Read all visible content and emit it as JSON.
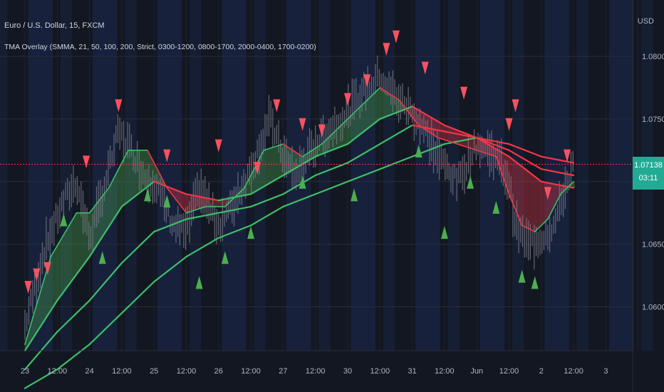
{
  "header": {
    "symbol_title": "Euro / U.S. Dollar, 15, FXCM",
    "indicator_title": "TMA Overlay (SMMA, 21, 50, 100, 200, Strict, 0300-1200, 0800-1700, 2000-0400, 1700-0200)",
    "currency": "USD"
  },
  "last_price": {
    "value": "1.07138",
    "countdown": "03:11",
    "color": "#22ab94"
  },
  "colors": {
    "background": "#131722",
    "session_band": "#1b2a52",
    "bull": "#4caf50",
    "bear": "#f23645",
    "candle": "#787b86"
  },
  "chart_data": {
    "type": "line",
    "title": "",
    "ylabel": "",
    "xlabel": "",
    "ylim": [
      1.0565,
      1.0845
    ],
    "y_ticks": [
      "1.06000",
      "1.06500",
      "1.07000",
      "1.07500",
      "1.08000"
    ],
    "y_tick_values": [
      1.06,
      1.065,
      1.07,
      1.075,
      1.08
    ],
    "x_tick_labels": [
      "23",
      "12:00",
      "24",
      "12:00",
      "25",
      "12:00",
      "26",
      "12:00",
      "27",
      "12:00",
      "30",
      "12:00",
      "31",
      "12:00",
      "Jun",
      "12:00",
      "2",
      "12:00",
      "3",
      "12:00"
    ],
    "x_session_index": [
      0,
      0.5,
      1,
      1.5,
      2,
      2.5,
      3,
      3.5,
      4,
      4.5,
      5,
      5.5,
      6,
      6.5,
      7,
      7.5,
      8,
      8.5,
      9,
      9.5
    ],
    "last_price": 1.07138,
    "series": [
      {
        "color": "#f23645",
        "role": "price",
        "x": [
          0,
          0.3,
          0.6,
          0.8,
          1.0,
          1.2,
          1.45,
          1.6,
          1.85,
          2.0,
          2.3,
          2.5,
          2.7,
          3.0,
          3.2,
          3.5,
          3.8,
          4.0,
          4.2,
          4.5,
          4.8,
          5.0,
          5.2,
          5.5,
          5.7,
          6.0,
          6.2,
          6.4,
          6.7,
          7.0,
          7.3,
          7.5,
          7.6,
          7.8,
          8.0,
          8.2,
          8.4,
          8.5
        ],
        "y": [
          1.0585,
          1.0645,
          1.0685,
          1.07,
          1.0655,
          1.069,
          1.074,
          1.073,
          1.0705,
          1.07,
          1.0665,
          1.066,
          1.0695,
          1.0665,
          1.068,
          1.071,
          1.075,
          1.072,
          1.0705,
          1.073,
          1.0745,
          1.0755,
          1.077,
          1.0785,
          1.077,
          1.0755,
          1.074,
          1.072,
          1.07,
          1.073,
          1.072,
          1.07,
          1.0665,
          1.065,
          1.0655,
          1.0665,
          1.07,
          1.0714
        ]
      },
      {
        "color": "#4caf50",
        "role": "ma21",
        "x": [
          0,
          0.4,
          0.8,
          1.0,
          1.3,
          1.6,
          1.9,
          2.2,
          2.5,
          2.8,
          3.1,
          3.4,
          3.7,
          4.0,
          4.3,
          4.6,
          4.9,
          5.2,
          5.5,
          5.8,
          6.1,
          6.4,
          6.7,
          7.0,
          7.3,
          7.5,
          7.7,
          7.9,
          8.1,
          8.3,
          8.5
        ],
        "y": [
          1.057,
          1.064,
          1.0675,
          1.0675,
          1.0695,
          1.0725,
          1.0725,
          1.0695,
          1.0675,
          1.068,
          1.068,
          1.0695,
          1.0725,
          1.073,
          1.072,
          1.073,
          1.0745,
          1.076,
          1.0775,
          1.0765,
          1.0745,
          1.0735,
          1.073,
          1.0725,
          1.072,
          1.069,
          1.0665,
          1.066,
          1.067,
          1.069,
          1.07
        ]
      },
      {
        "color": "#4caf50",
        "role": "ma50",
        "x": [
          0,
          0.5,
          1.0,
          1.5,
          2.0,
          2.5,
          3.0,
          3.5,
          4.0,
          4.5,
          5.0,
          5.5,
          6.0,
          6.5,
          7.0,
          7.5,
          8.0,
          8.5
        ],
        "y": [
          1.0565,
          1.0605,
          1.064,
          1.068,
          1.07,
          1.069,
          1.0685,
          1.069,
          1.0705,
          1.072,
          1.073,
          1.075,
          1.076,
          1.0745,
          1.0735,
          1.072,
          1.07,
          1.0695
        ]
      },
      {
        "color": "#4caf50",
        "role": "ma100",
        "x": [
          0,
          0.5,
          1.0,
          1.5,
          2.0,
          2.5,
          3.0,
          3.5,
          4.0,
          4.5,
          5.0,
          5.5,
          6.0,
          6.5,
          7.0,
          7.5,
          8.0,
          8.5
        ],
        "y": [
          1.055,
          1.058,
          1.0605,
          1.0635,
          1.066,
          1.067,
          1.0675,
          1.068,
          1.069,
          1.0705,
          1.0715,
          1.073,
          1.0745,
          1.074,
          1.0735,
          1.0725,
          1.071,
          1.0705
        ]
      },
      {
        "color": "#4caf50",
        "role": "ma200",
        "x": [
          0,
          0.5,
          1.0,
          1.5,
          2.0,
          2.5,
          3.0,
          3.5,
          4.0,
          4.5,
          5.0,
          5.5,
          6.0,
          6.5,
          7.0,
          7.5,
          8.0,
          8.5
        ],
        "y": [
          1.0535,
          1.055,
          1.057,
          1.0595,
          1.062,
          1.064,
          1.0655,
          1.0665,
          1.068,
          1.069,
          1.07,
          1.071,
          1.072,
          1.073,
          1.0735,
          1.073,
          1.072,
          1.0715
        ]
      }
    ],
    "bear_signals": [
      {
        "x": 0.05,
        "y": 1.0615
      },
      {
        "x": 0.18,
        "y": 1.0625
      },
      {
        "x": 0.35,
        "y": 1.063
      },
      {
        "x": 0.95,
        "y": 1.0715
      },
      {
        "x": 1.45,
        "y": 1.076
      },
      {
        "x": 2.2,
        "y": 1.072
      },
      {
        "x": 3.0,
        "y": 1.0728
      },
      {
        "x": 3.6,
        "y": 1.071
      },
      {
        "x": 3.9,
        "y": 1.076
      },
      {
        "x": 4.3,
        "y": 1.0745
      },
      {
        "x": 4.6,
        "y": 1.074
      },
      {
        "x": 5.0,
        "y": 1.0765
      },
      {
        "x": 5.3,
        "y": 1.078
      },
      {
        "x": 5.6,
        "y": 1.0805
      },
      {
        "x": 5.75,
        "y": 1.0815
      },
      {
        "x": 6.2,
        "y": 1.079
      },
      {
        "x": 6.8,
        "y": 1.077
      },
      {
        "x": 7.5,
        "y": 1.0745
      },
      {
        "x": 7.6,
        "y": 1.076
      },
      {
        "x": 8.1,
        "y": 1.069
      },
      {
        "x": 8.4,
        "y": 1.072
      }
    ],
    "bull_signals": [
      {
        "x": 0.6,
        "y": 1.067
      },
      {
        "x": 1.2,
        "y": 1.064
      },
      {
        "x": 1.9,
        "y": 1.069
      },
      {
        "x": 2.2,
        "y": 1.0685
      },
      {
        "x": 2.7,
        "y": 1.062
      },
      {
        "x": 3.1,
        "y": 1.064
      },
      {
        "x": 3.5,
        "y": 1.066
      },
      {
        "x": 4.3,
        "y": 1.07
      },
      {
        "x": 5.1,
        "y": 1.069
      },
      {
        "x": 6.1,
        "y": 1.0725
      },
      {
        "x": 6.5,
        "y": 1.066
      },
      {
        "x": 6.9,
        "y": 1.07
      },
      {
        "x": 7.3,
        "y": 1.068
      },
      {
        "x": 7.7,
        "y": 1.0625
      },
      {
        "x": 7.9,
        "y": 1.062
      }
    ]
  }
}
